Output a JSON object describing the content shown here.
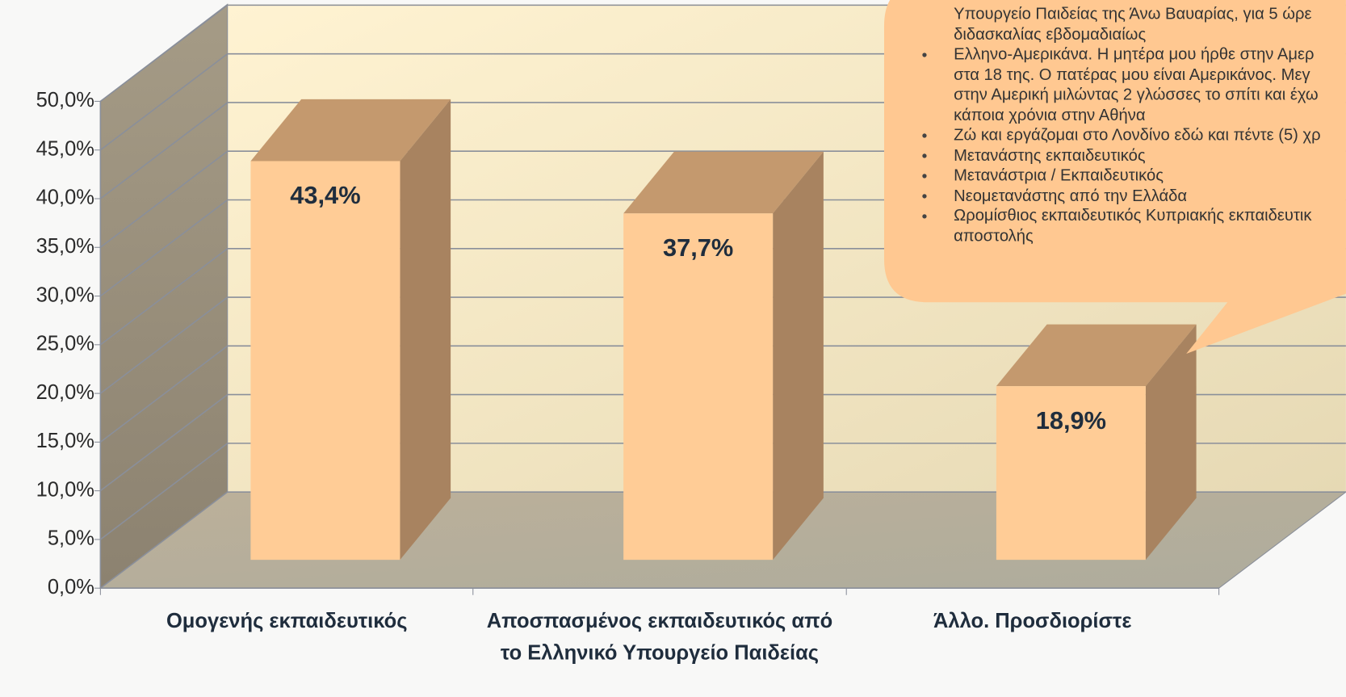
{
  "chart_data": {
    "type": "bar3d",
    "categories": [
      "Ομογενής εκπαιδευτικός",
      "Αποσπασμένος εκπαιδευτικός από το Ελληνικό Υπουργείο Παιδείας",
      "Άλλο. Προσδιορίστε"
    ],
    "values": [
      43.4,
      37.7,
      18.9
    ],
    "value_labels": [
      "43,4%",
      "37,7%",
      "18,9%"
    ],
    "color": "#ffcc96",
    "ylim": [
      0,
      50
    ],
    "yticks": [
      {
        "value": 0,
        "label": "0,0%"
      },
      {
        "value": 5,
        "label": "5,0%"
      },
      {
        "value": 10,
        "label": "10,0%"
      },
      {
        "value": 15,
        "label": "15,0%"
      },
      {
        "value": 20,
        "label": "20,0%"
      },
      {
        "value": 25,
        "label": "25,0%"
      },
      {
        "value": 30,
        "label": "30,0%"
      },
      {
        "value": 35,
        "label": "35,0%"
      },
      {
        "value": 40,
        "label": "40,0%"
      },
      {
        "value": 45,
        "label": "45,0%"
      },
      {
        "value": 50,
        "label": "50,0%"
      }
    ],
    "grid": true,
    "callout": {
      "items": [
        {
          "bullet": false,
          "lines": [
            "Υπουργείο Παιδείας της Άνω Βαυαρίας, για 5 ώρε",
            "διδασκαλίας εβδομαδιαίως"
          ]
        },
        {
          "bullet": true,
          "lines": [
            "Ελληνο-Αμερικάνα. Η μητέρα μου ήρθε στην Αμερ",
            "στα 18 της. Ο πατέρας μου είναι Αμερικάνος. Μεγ",
            "στην Αμερική μιλώντας 2 γλώσσες το σπίτι και έχω",
            "κάποια χρόνια στην Αθήνα"
          ]
        },
        {
          "bullet": true,
          "lines": [
            "Ζώ και εργάζομαι στο Λονδίνο εδώ και πέντε (5) χρ"
          ]
        },
        {
          "bullet": true,
          "lines": [
            "Μετανάστης εκπαιδευτικός"
          ]
        },
        {
          "bullet": true,
          "lines": [
            "Μετανάστρια / Εκπαιδευτικός"
          ]
        },
        {
          "bullet": true,
          "lines": [
            "Νεομετανάστης από την Ελλάδα"
          ]
        },
        {
          "bullet": true,
          "lines": [
            "Ωρομίσθιος εκπαιδευτικός Κυπριακής εκπαιδευτικ",
            "αποστολής"
          ]
        }
      ]
    }
  }
}
